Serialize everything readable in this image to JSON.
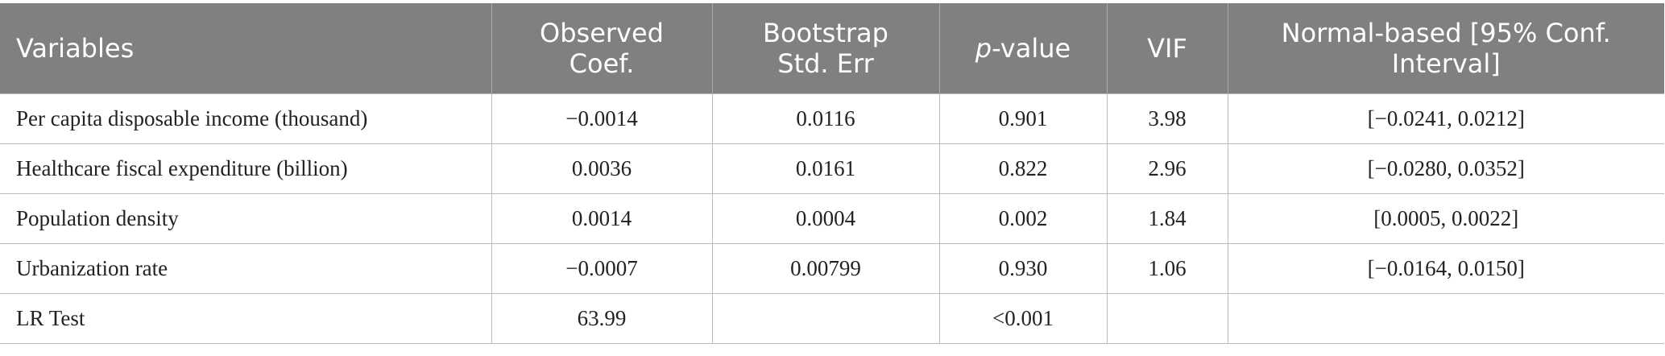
{
  "table": {
    "headers": [
      {
        "lines": [
          "Variables"
        ]
      },
      {
        "lines": [
          "Observed",
          "Coef."
        ]
      },
      {
        "lines": [
          "Bootstrap",
          "Std. Err"
        ]
      },
      {
        "italic": "p",
        "rest": "-value"
      },
      {
        "lines": [
          "VIF"
        ]
      },
      {
        "lines": [
          "Normal-based [95% Conf.",
          "Interval]"
        ]
      }
    ],
    "rows": [
      [
        "Per capita disposable income (thousand)",
        "−0.0014",
        "0.0116",
        "0.901",
        "3.98",
        "[−0.0241, 0.0212]"
      ],
      [
        "Healthcare fiscal expenditure (billion)",
        "0.0036",
        "0.0161",
        "0.822",
        "2.96",
        "[−0.0280, 0.0352]"
      ],
      [
        "Population density",
        "0.0014",
        "0.0004",
        "0.002",
        "1.84",
        "[0.0005, 0.0022]"
      ],
      [
        "Urbanization rate",
        "−0.0007",
        "0.00799",
        "0.930",
        "1.06",
        "[−0.0164, 0.0150]"
      ],
      [
        "LR Test",
        "63.99",
        null,
        "<0.001",
        null,
        null
      ]
    ]
  }
}
